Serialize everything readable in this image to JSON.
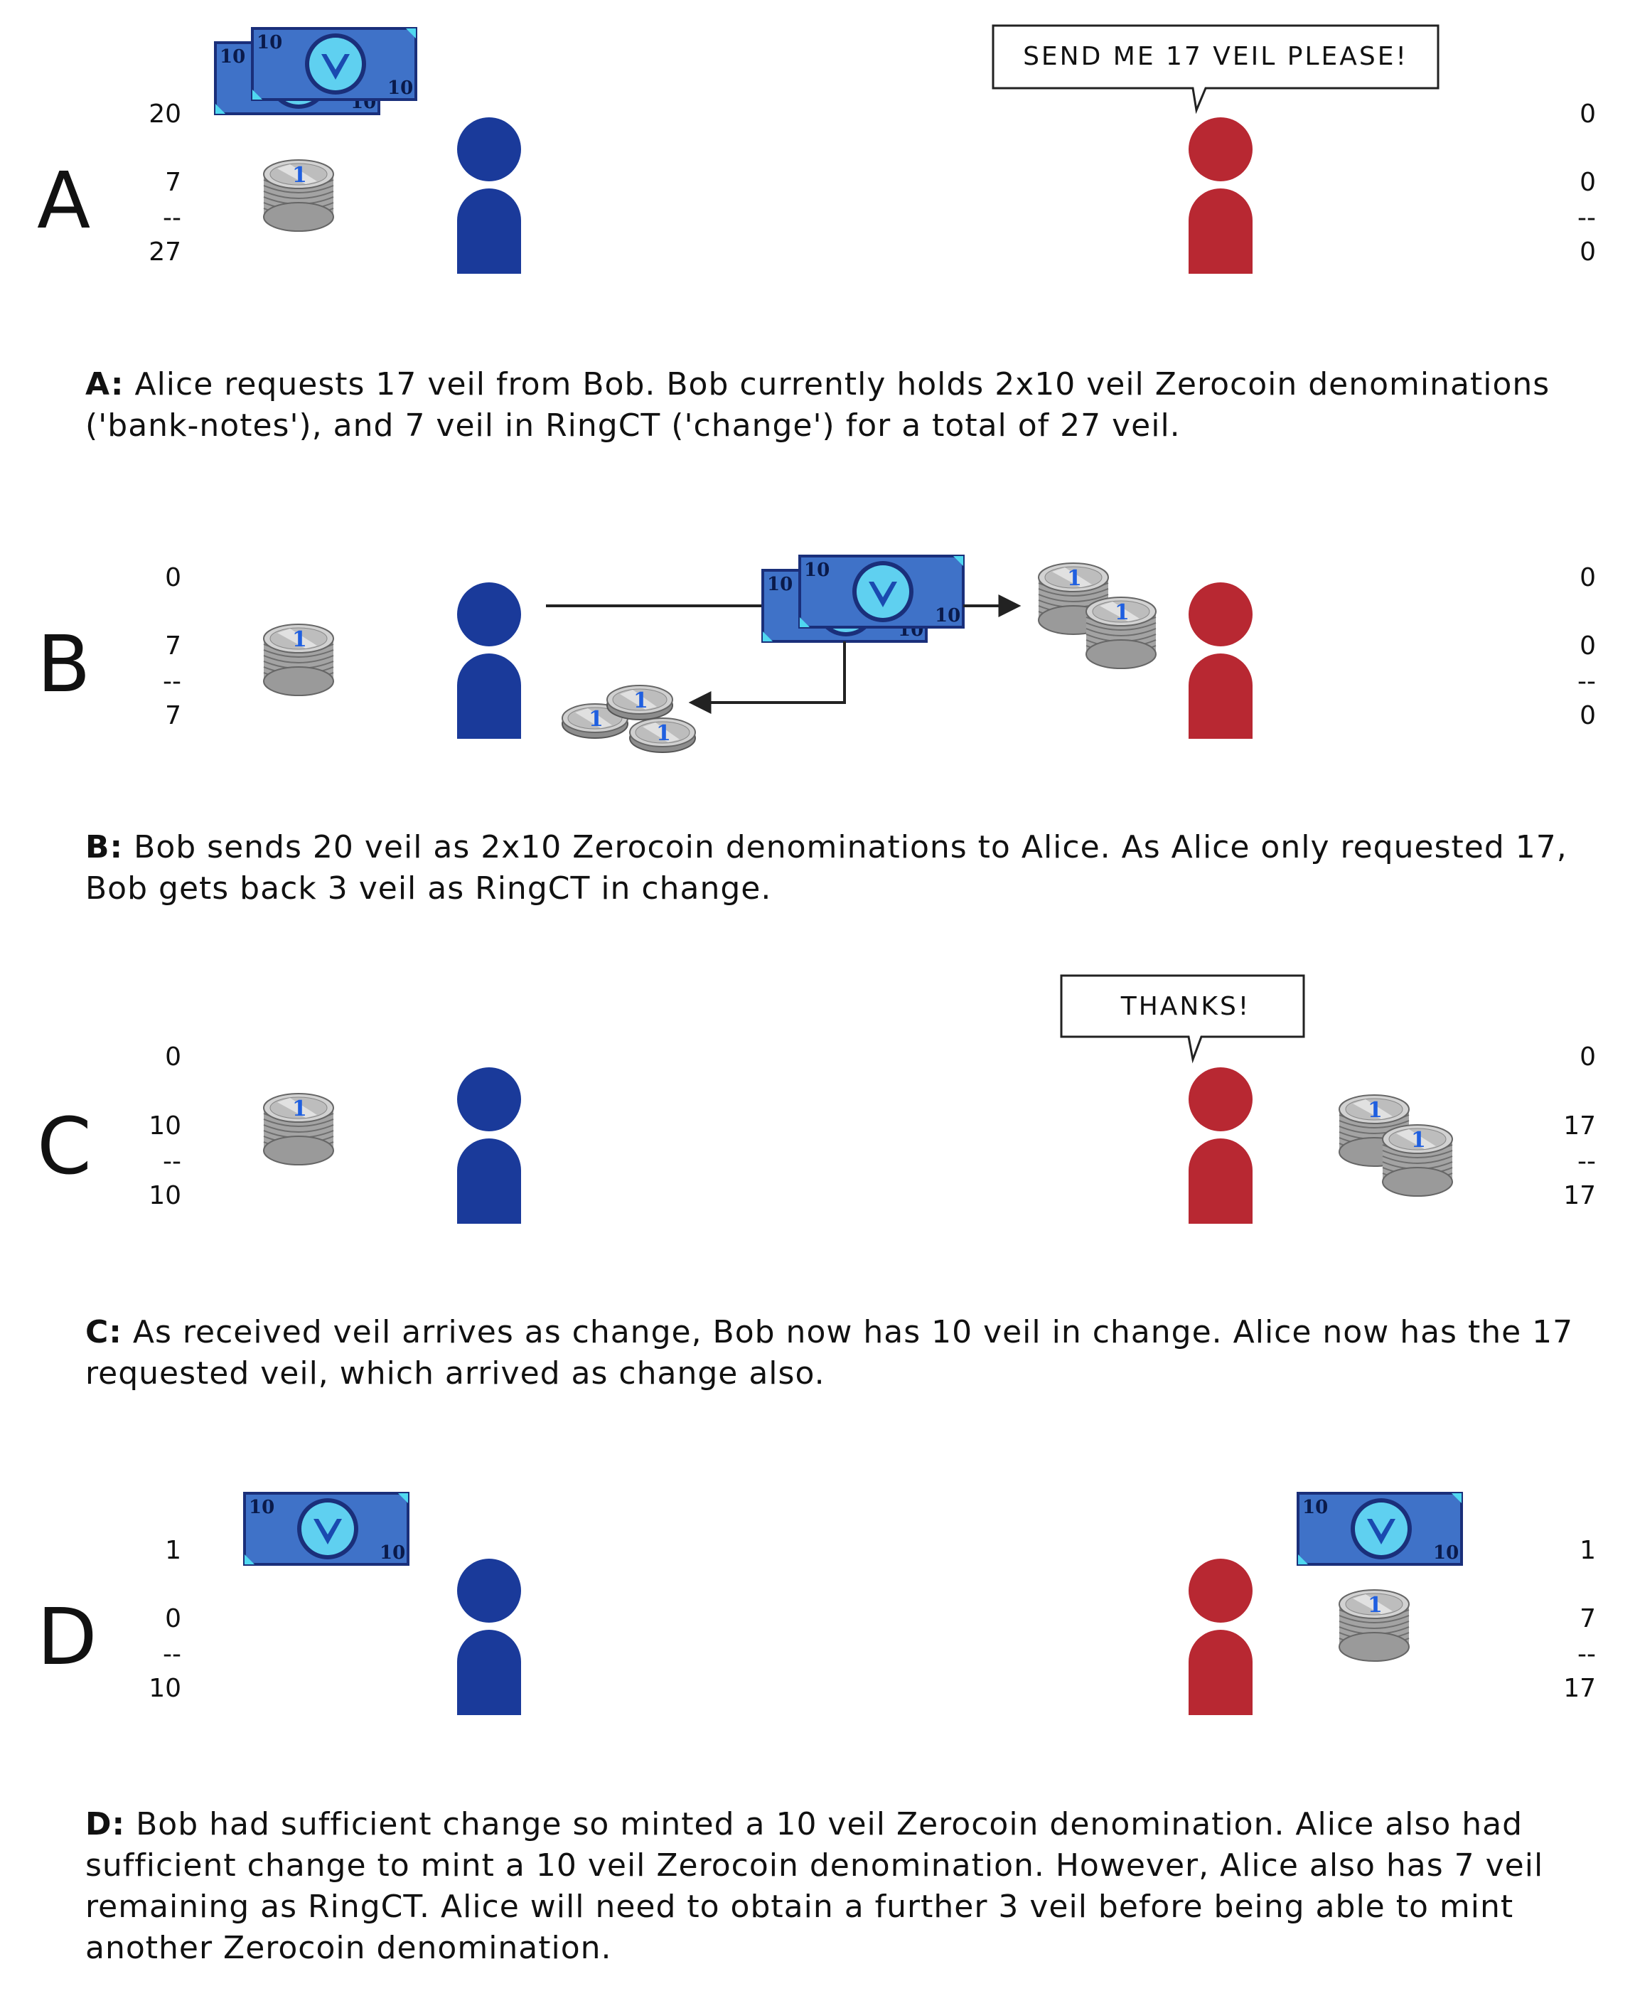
{
  "panels": [
    {
      "letter": "A",
      "left": {
        "notes": "20",
        "change": "7",
        "total": "27"
      },
      "right": {
        "notes": "0",
        "change": "0",
        "total": "0"
      },
      "bubble": "SEND ME 17 VEIL PLEASE!",
      "caption_label": "A:",
      "caption": "Alice requests 17 veil from Bob. Bob currently holds 2x10 veil Zerocoin denominations ('bank-notes'), and 7 veil in RingCT ('change') for a total of 27 veil."
    },
    {
      "letter": "B",
      "left": {
        "notes": "0",
        "change": "7",
        "total": "7"
      },
      "right": {
        "notes": "0",
        "change": "0",
        "total": "0"
      },
      "bubble": "",
      "caption_label": "B:",
      "caption": "Bob sends 20 veil as 2x10 Zerocoin denominations to Alice. As Alice only requested 17, Bob gets back 3 veil as RingCT in change."
    },
    {
      "letter": "C",
      "left": {
        "notes": "0",
        "change": "10",
        "total": "10"
      },
      "right": {
        "notes": "0",
        "change": "17",
        "total": "17"
      },
      "bubble": "THANKS!",
      "caption_label": "C:",
      "caption": "As received veil arrives as change, Bob now has 10 veil in change. Alice now has the 17 requested veil, which arrived as change also."
    },
    {
      "letter": "D",
      "left": {
        "notes": "1",
        "change": "0",
        "total": "10"
      },
      "right": {
        "notes": "1",
        "change": "7",
        "total": "17"
      },
      "bubble": "",
      "caption_label": "D:",
      "caption": "Bob had sufficient change so minted a 10 veil Zerocoin denomination. Alice also had sufficient change to mint a 10 veil Zerocoin denomination. However, Alice also has 7 veil remaining as RingCT. Alice will need to obtain a further 3 veil before being able to mint another Zerocoin denomination."
    }
  ],
  "divider": "--",
  "note_value": "10",
  "coin_value": "1",
  "colors": {
    "bob": "#1a3a9a",
    "alice": "#b82832",
    "note_fill": "#3f72c8",
    "note_border": "#1a2f7a",
    "note_corner": "#4fd8f0",
    "coin": "#b8b8b8"
  }
}
